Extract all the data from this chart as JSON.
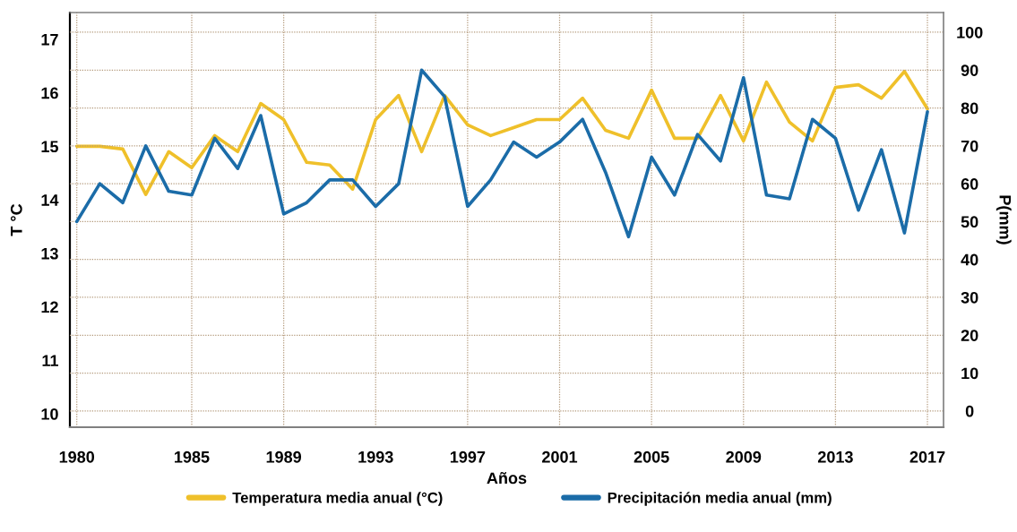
{
  "chart_data": {
    "type": "line",
    "xlabel": "Años",
    "ylabel": "T °C",
    "y2label": "P(mm)",
    "x": [
      1980,
      1981,
      1982,
      1983,
      1984,
      1985,
      1986,
      1987,
      1988,
      1989,
      1990,
      1991,
      1992,
      1993,
      1994,
      1995,
      1996,
      1997,
      1998,
      1999,
      2000,
      2001,
      2002,
      2003,
      2004,
      2005,
      2006,
      2007,
      2008,
      2009,
      2010,
      2011,
      2012,
      2013,
      2014,
      2015,
      2016,
      2017
    ],
    "xlim": [
      1979.7,
      2017.7
    ],
    "xticks": [
      1980,
      1985,
      1989,
      1993,
      1997,
      2001,
      2005,
      2009,
      2013,
      2017
    ],
    "ylim": [
      9.75,
      17.5
    ],
    "yticks": [
      10,
      11,
      12,
      13,
      14,
      15,
      16,
      17
    ],
    "y2lim": [
      -4.3,
      105.2
    ],
    "y2ticks": [
      0,
      10,
      20,
      30,
      40,
      50,
      60,
      70,
      80,
      90,
      100
    ],
    "grid": true,
    "legend": "bottom",
    "series": [
      {
        "name": "Temperatura media anual (°C)",
        "color": "#efc02a",
        "values": [
          15.0,
          15.0,
          14.95,
          14.1,
          14.9,
          14.6,
          15.2,
          14.9,
          15.8,
          15.5,
          14.7,
          14.65,
          14.2,
          15.5,
          15.95,
          14.9,
          15.95,
          15.4,
          15.2,
          15.35,
          15.5,
          15.5,
          15.9,
          15.3,
          15.15,
          16.05,
          15.15,
          15.15,
          15.95,
          15.1,
          16.2,
          15.45,
          15.1,
          16.1,
          16.15,
          15.9,
          16.4,
          15.7
        ]
      },
      {
        "name": "Precipitación media anual (mm)",
        "color": "#1b6ca8",
        "axis": "y2",
        "values": [
          50,
          60,
          55,
          70,
          58,
          57,
          72,
          64,
          78,
          52,
          55,
          61,
          61,
          54,
          60,
          90,
          83,
          54,
          61,
          71,
          67,
          71,
          77,
          63,
          46,
          67,
          57,
          73,
          66,
          88,
          57,
          56,
          77,
          72,
          53,
          69,
          47,
          79
        ]
      }
    ]
  }
}
